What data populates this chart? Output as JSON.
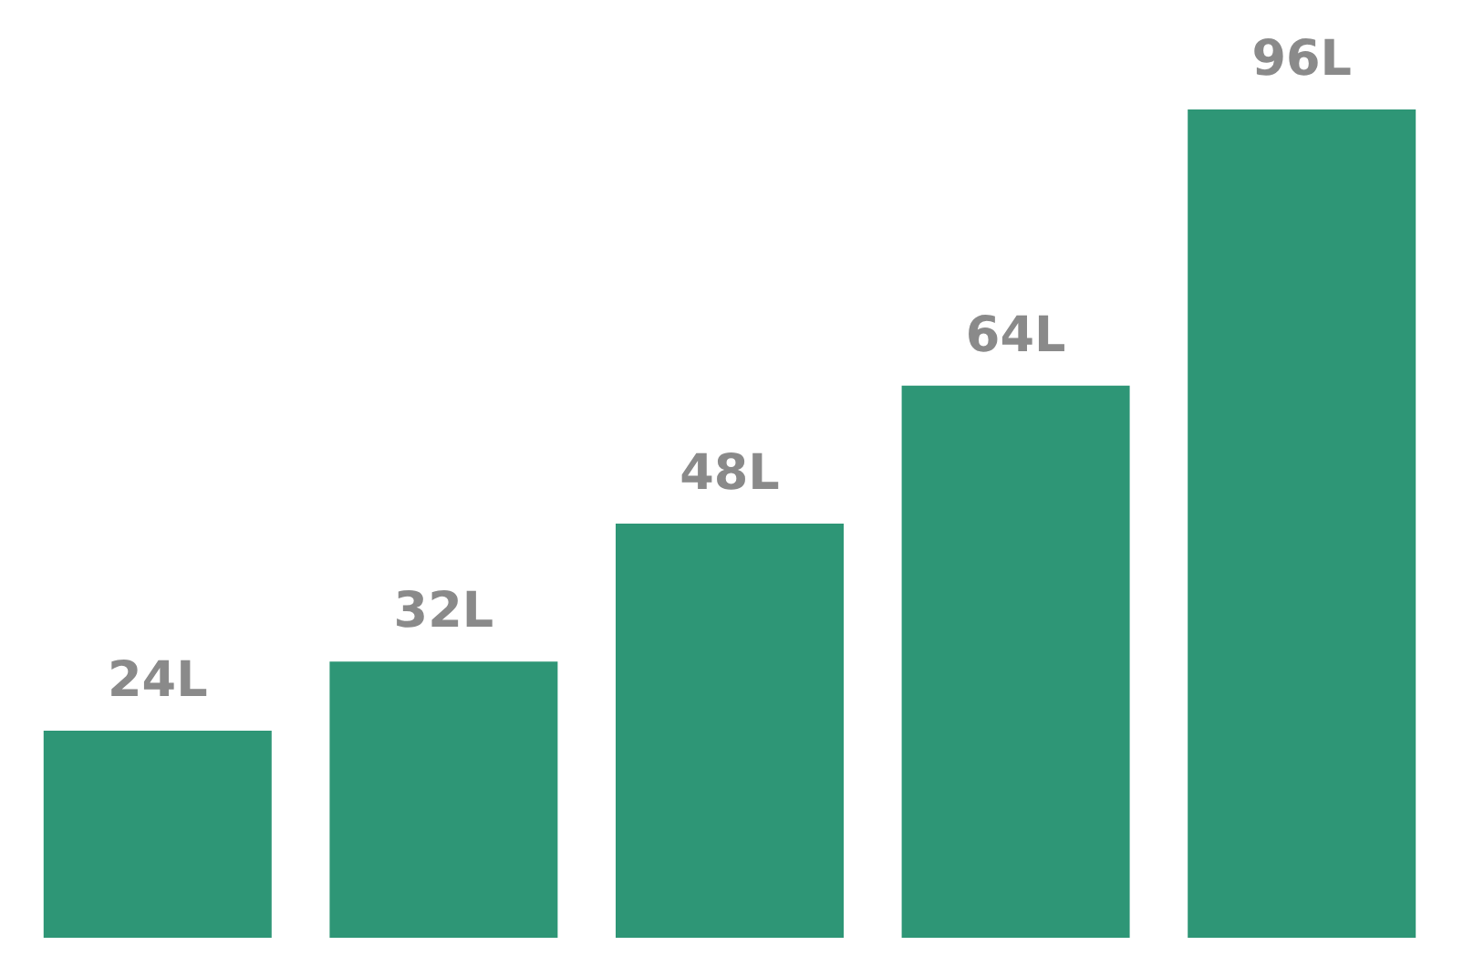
{
  "chart_data": {
    "type": "bar",
    "categories": [
      null,
      null,
      null,
      null,
      null
    ],
    "values": [
      24,
      32,
      48,
      64,
      96
    ],
    "value_labels": [
      "24L",
      "32L",
      "48L",
      "64L",
      "96L"
    ],
    "color": "#2e9676",
    "ylim": [
      0,
      96
    ],
    "grid": false
  }
}
